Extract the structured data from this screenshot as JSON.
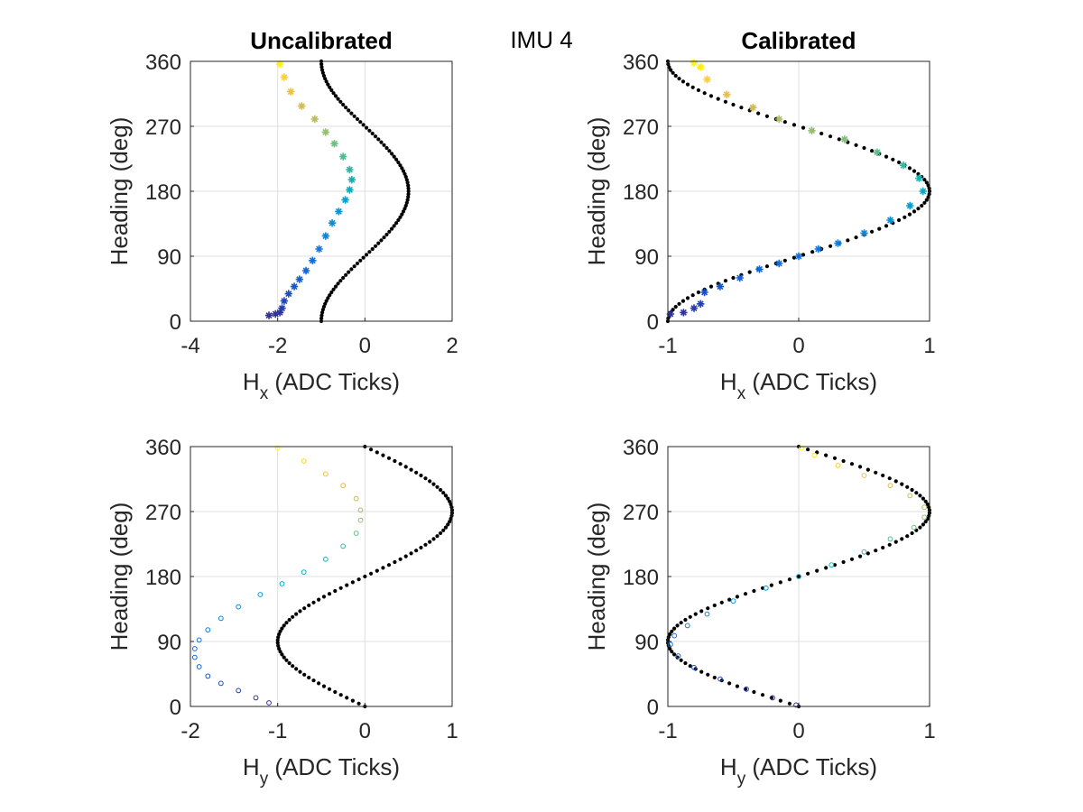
{
  "figure": {
    "title": "IMU 4"
  },
  "chart_data": [
    {
      "id": "hx-uncalibrated",
      "type": "scatter",
      "title": "Uncalibrated",
      "xlabel_main": "H",
      "xlabel_sub": "x",
      "xlabel_tail": " (ADC Ticks)",
      "ylabel": "Heading (deg)",
      "xlim": [
        -4,
        2
      ],
      "ylim": [
        0,
        360
      ],
      "xticks": [
        -4,
        -2,
        0,
        2
      ],
      "yticks": [
        0,
        90,
        180,
        270,
        360
      ],
      "grid": true,
      "marker": "star",
      "colormap": "parula",
      "reference": {
        "name": "reference cos(heading)",
        "color": "#000000",
        "offset": -1,
        "amplitude": -1,
        "shape": "cos"
      },
      "series": [
        {
          "points": [
            [
              -2.2,
              8
            ],
            [
              -2.05,
              10
            ],
            [
              -1.95,
              12
            ],
            [
              -1.9,
              18
            ],
            [
              -1.85,
              28
            ],
            [
              -1.75,
              38
            ],
            [
              -1.62,
              48
            ],
            [
              -1.5,
              58
            ],
            [
              -1.35,
              70
            ],
            [
              -1.2,
              84
            ],
            [
              -1.05,
              100
            ],
            [
              -0.9,
              118
            ],
            [
              -0.75,
              136
            ],
            [
              -0.6,
              152
            ],
            [
              -0.45,
              168
            ],
            [
              -0.35,
              182
            ],
            [
              -0.3,
              196
            ],
            [
              -0.35,
              210
            ],
            [
              -0.5,
              228
            ],
            [
              -0.7,
              246
            ],
            [
              -0.9,
              262
            ],
            [
              -1.15,
              280
            ],
            [
              -1.45,
              298
            ],
            [
              -1.7,
              318
            ],
            [
              -1.85,
              338
            ],
            [
              -1.95,
              356
            ]
          ]
        }
      ]
    },
    {
      "id": "hx-calibrated",
      "type": "scatter",
      "title": "Calibrated",
      "xlabel_main": "H",
      "xlabel_sub": "x",
      "xlabel_tail": " (ADC Ticks)",
      "ylabel": "Heading (deg)",
      "xlim": [
        -1,
        1
      ],
      "ylim": [
        0,
        360
      ],
      "xticks": [
        -1,
        0,
        1
      ],
      "yticks": [
        0,
        90,
        180,
        270,
        360
      ],
      "grid": true,
      "marker": "star",
      "colormap": "parula",
      "reference": {
        "name": "reference -cos(heading)",
        "color": "#000000",
        "offset": 0,
        "amplitude": -1,
        "shape": "cos"
      },
      "series": [
        {
          "points": [
            [
              -0.98,
              10
            ],
            [
              -0.88,
              12
            ],
            [
              -0.8,
              18
            ],
            [
              -0.75,
              24
            ],
            [
              -0.72,
              40
            ],
            [
              -0.6,
              48
            ],
            [
              -0.45,
              60
            ],
            [
              -0.3,
              72
            ],
            [
              -0.15,
              80
            ],
            [
              0.0,
              90
            ],
            [
              0.15,
              100
            ],
            [
              0.3,
              108
            ],
            [
              0.5,
              122
            ],
            [
              0.7,
              140
            ],
            [
              0.85,
              160
            ],
            [
              0.95,
              180
            ],
            [
              0.92,
              198
            ],
            [
              0.8,
              216
            ],
            [
              0.6,
              234
            ],
            [
              0.35,
              252
            ],
            [
              0.1,
              264
            ],
            [
              -0.15,
              280
            ],
            [
              -0.35,
              296
            ],
            [
              -0.55,
              314
            ],
            [
              -0.7,
              335
            ],
            [
              -0.75,
              352
            ],
            [
              -0.8,
              358
            ]
          ]
        }
      ]
    },
    {
      "id": "hy-uncalibrated",
      "type": "scatter",
      "title": "",
      "xlabel_main": "H",
      "xlabel_sub": "y",
      "xlabel_tail": " (ADC Ticks)",
      "ylabel": "Heading (deg)",
      "xlim": [
        -2,
        1
      ],
      "ylim": [
        0,
        360
      ],
      "xticks": [
        -2,
        -1,
        0,
        1
      ],
      "yticks": [
        0,
        90,
        180,
        270,
        360
      ],
      "grid": true,
      "marker": "circle",
      "colormap": "parula",
      "reference": {
        "name": "reference sin(heading)",
        "color": "#000000",
        "offset": 0,
        "amplitude": -1,
        "shape": "sin"
      },
      "series": [
        {
          "points": [
            [
              -1.1,
              5
            ],
            [
              -1.25,
              12
            ],
            [
              -1.45,
              22
            ],
            [
              -1.65,
              32
            ],
            [
              -1.8,
              42
            ],
            [
              -1.9,
              55
            ],
            [
              -1.95,
              68
            ],
            [
              -1.95,
              80
            ],
            [
              -1.9,
              92
            ],
            [
              -1.8,
              106
            ],
            [
              -1.65,
              122
            ],
            [
              -1.45,
              138
            ],
            [
              -1.2,
              155
            ],
            [
              -0.95,
              170
            ],
            [
              -0.7,
              186
            ],
            [
              -0.45,
              204
            ],
            [
              -0.25,
              222
            ],
            [
              -0.1,
              240
            ],
            [
              -0.05,
              258
            ],
            [
              -0.05,
              272
            ],
            [
              -0.1,
              288
            ],
            [
              -0.25,
              306
            ],
            [
              -0.45,
              322
            ],
            [
              -0.7,
              340
            ],
            [
              -1.0,
              358
            ]
          ]
        }
      ]
    },
    {
      "id": "hy-calibrated",
      "type": "scatter",
      "title": "",
      "xlabel_main": "H",
      "xlabel_sub": "y",
      "xlabel_tail": " (ADC Ticks)",
      "ylabel": "Heading (deg)",
      "xlim": [
        -1,
        1
      ],
      "ylim": [
        0,
        360
      ],
      "xticks": [
        -1,
        0,
        1
      ],
      "yticks": [
        0,
        90,
        180,
        270,
        360
      ],
      "grid": true,
      "marker": "circle",
      "colormap": "parula",
      "reference": {
        "name": "reference -sin(heading)",
        "color": "#000000",
        "offset": 0,
        "amplitude": -1,
        "shape": "sin"
      },
      "series": [
        {
          "points": [
            [
              -0.02,
              2
            ],
            [
              -0.2,
              12
            ],
            [
              -0.4,
              24
            ],
            [
              -0.6,
              38
            ],
            [
              -0.8,
              54
            ],
            [
              -0.92,
              70
            ],
            [
              -0.98,
              86
            ],
            [
              -0.95,
              98
            ],
            [
              -0.85,
              112
            ],
            [
              -0.7,
              128
            ],
            [
              -0.5,
              146
            ],
            [
              -0.25,
              164
            ],
            [
              0.0,
              180
            ],
            [
              0.25,
              196
            ],
            [
              0.5,
              214
            ],
            [
              0.7,
              232
            ],
            [
              0.88,
              248
            ],
            [
              0.96,
              262
            ],
            [
              0.96,
              276
            ],
            [
              0.85,
              292
            ],
            [
              0.7,
              306
            ],
            [
              0.5,
              320
            ],
            [
              0.3,
              334
            ],
            [
              0.12,
              348
            ],
            [
              0.02,
              358
            ]
          ]
        }
      ]
    }
  ]
}
